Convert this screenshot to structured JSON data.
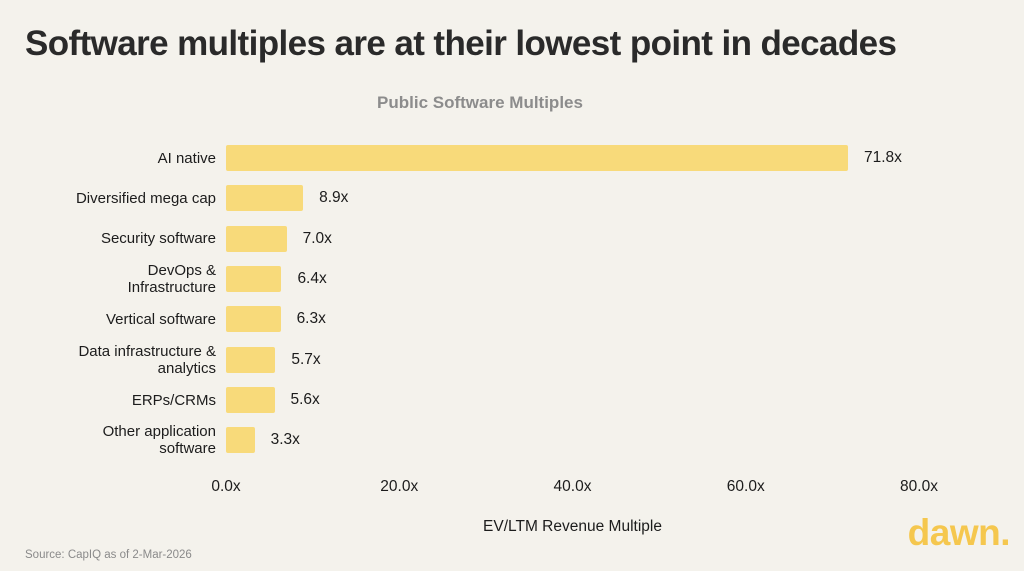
{
  "page": {
    "title": "Software multiples are at their lowest point in decades",
    "background_color": "#f4f2ec"
  },
  "chart_data": {
    "type": "bar",
    "orientation": "horizontal",
    "title": "Public Software Multiples",
    "categories": [
      "AI native",
      "Diversified mega cap",
      "Security software",
      "DevOps &\nInfrastructure",
      "Vertical software",
      "Data infrastructure &\nanalytics",
      "ERPs/CRMs",
      "Other application\nsoftware"
    ],
    "values": [
      71.8,
      8.9,
      7.0,
      6.4,
      6.3,
      5.7,
      5.6,
      3.3
    ],
    "value_labels": [
      "71.8x",
      "8.9x",
      "7.0x",
      "6.4x",
      "6.3x",
      "5.7x",
      "5.6x",
      "3.3x"
    ],
    "xlabel": "EV/LTM Revenue Multiple",
    "xlim": [
      0,
      80
    ],
    "xticks": [
      0,
      20,
      40,
      60,
      80
    ],
    "xtick_labels": [
      "0.0x",
      "20.0x",
      "40.0x",
      "60.0x",
      "80.0x"
    ],
    "bar_color": "#f8da7a",
    "grid": false,
    "legend": null
  },
  "footer": {
    "source": "Source: CapIQ as of 2-Mar-2026",
    "logo_text": "dawn.",
    "logo_color": "#f5c74e"
  }
}
